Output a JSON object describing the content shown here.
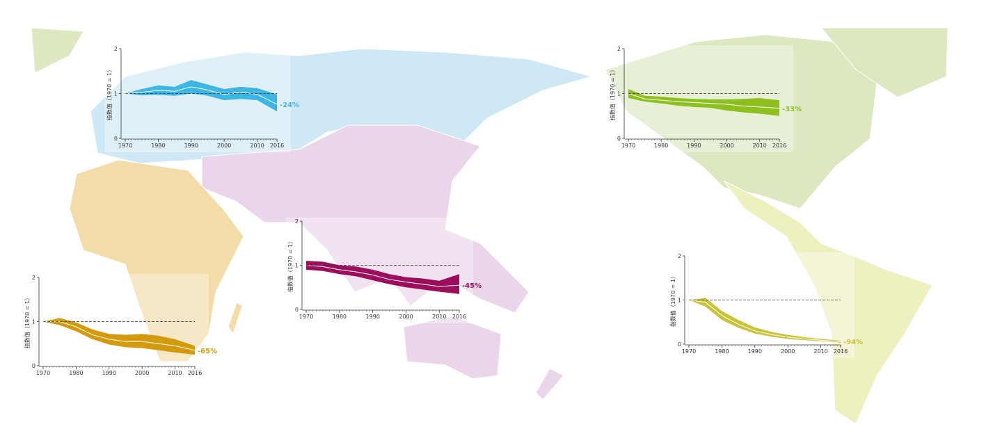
{
  "chart_data": [
    {
      "type": "band",
      "color": "#3cb6e3",
      "line_color": "#ffffff",
      "y_label": "指数值（1970 = 1）",
      "annotation": "-24%",
      "x": [
        1970,
        1975,
        1980,
        1985,
        1990,
        1995,
        2000,
        2005,
        2010,
        2016
      ],
      "values": [
        1,
        1.03,
        1.07,
        1.05,
        1.15,
        1.08,
        0.98,
        1.03,
        0.98,
        0.76
      ],
      "upper": [
        1,
        1.1,
        1.18,
        1.15,
        1.3,
        1.2,
        1.1,
        1.15,
        1.12,
        0.98
      ],
      "lower": [
        1,
        0.96,
        0.97,
        0.95,
        1.0,
        0.95,
        0.85,
        0.88,
        0.85,
        0.6
      ],
      "reference_line": 1,
      "xlim": [
        1970,
        2016
      ],
      "xticks": [
        1970,
        1980,
        1990,
        2000,
        2010,
        2016
      ],
      "ylim": [
        0,
        2
      ],
      "yticks": [
        0,
        1,
        2
      ]
    },
    {
      "type": "band",
      "color": "#8dbf1e",
      "line_color": "#ffffff",
      "y_label": "指数值（1970 = 1）",
      "annotation": "-33%",
      "x": [
        1970,
        1975,
        1980,
        1985,
        1990,
        1995,
        2000,
        2005,
        2010,
        2016
      ],
      "values": [
        1,
        0.88,
        0.85,
        0.82,
        0.8,
        0.78,
        0.76,
        0.72,
        0.7,
        0.67
      ],
      "upper": [
        1.1,
        0.95,
        0.93,
        0.9,
        0.88,
        0.87,
        0.87,
        0.88,
        0.9,
        0.85
      ],
      "lower": [
        0.9,
        0.82,
        0.78,
        0.73,
        0.7,
        0.68,
        0.62,
        0.58,
        0.55,
        0.5
      ],
      "reference_line": 1,
      "xlim": [
        1970,
        2016
      ],
      "xticks": [
        1970,
        1980,
        1990,
        2000,
        2010,
        2016
      ],
      "ylim": [
        0,
        2
      ],
      "yticks": [
        0,
        1,
        2
      ]
    },
    {
      "type": "band",
      "color": "#9c0d5b",
      "line_color": "#ffffff",
      "y_label": "指数值（1970 = 1）",
      "annotation": "-45%",
      "x": [
        1970,
        1975,
        1980,
        1985,
        1990,
        1995,
        2000,
        2005,
        2010,
        2016
      ],
      "values": [
        1,
        0.97,
        0.9,
        0.85,
        0.78,
        0.68,
        0.62,
        0.57,
        0.52,
        0.55
      ],
      "upper": [
        1.1,
        1.08,
        1.0,
        0.97,
        0.9,
        0.8,
        0.73,
        0.7,
        0.65,
        0.8
      ],
      "lower": [
        0.9,
        0.87,
        0.8,
        0.75,
        0.66,
        0.57,
        0.5,
        0.45,
        0.4,
        0.35
      ],
      "reference_line": 1,
      "xlim": [
        1970,
        2016
      ],
      "xticks": [
        1970,
        1980,
        1990,
        2000,
        2010,
        2016
      ],
      "ylim": [
        0,
        2
      ],
      "yticks": [
        0,
        1,
        2
      ]
    },
    {
      "type": "band",
      "color": "#d39b0c",
      "line_color": "#ffffff",
      "y_label": "指数值（1970 = 1）",
      "annotation": "-65%",
      "x": [
        1970,
        1975,
        1980,
        1985,
        1990,
        1995,
        2000,
        2005,
        2010,
        2016
      ],
      "values": [
        1,
        1.0,
        0.88,
        0.7,
        0.6,
        0.55,
        0.55,
        0.5,
        0.45,
        0.35
      ],
      "upper": [
        1,
        1.08,
        0.98,
        0.82,
        0.72,
        0.7,
        0.72,
        0.68,
        0.6,
        0.45
      ],
      "lower": [
        1,
        0.92,
        0.78,
        0.6,
        0.48,
        0.42,
        0.4,
        0.35,
        0.3,
        0.25
      ],
      "reference_line": 1,
      "xlim": [
        1970,
        2016
      ],
      "xticks": [
        1970,
        1980,
        1990,
        2000,
        2010,
        2016
      ],
      "ylim": [
        0,
        2
      ],
      "yticks": [
        0,
        1,
        2
      ]
    },
    {
      "type": "band",
      "color": "#c9c23a",
      "line_color": "#ffffff",
      "y_label": "指数值（1970 = 1）",
      "annotation": "-94%",
      "x": [
        1970,
        1975,
        1980,
        1985,
        1990,
        1995,
        2000,
        2005,
        2010,
        2016
      ],
      "values": [
        1,
        0.95,
        0.65,
        0.45,
        0.3,
        0.22,
        0.16,
        0.12,
        0.09,
        0.06
      ],
      "upper": [
        1,
        1.05,
        0.75,
        0.55,
        0.38,
        0.28,
        0.21,
        0.16,
        0.12,
        0.08
      ],
      "lower": [
        1,
        0.85,
        0.55,
        0.37,
        0.24,
        0.17,
        0.12,
        0.09,
        0.07,
        0.04
      ],
      "reference_line": 1,
      "xlim": [
        1970,
        2016
      ],
      "xticks": [
        1970,
        1980,
        1990,
        2000,
        2010,
        2016
      ],
      "ylim": [
        0,
        2
      ],
      "yticks": [
        0,
        1,
        2
      ]
    }
  ]
}
